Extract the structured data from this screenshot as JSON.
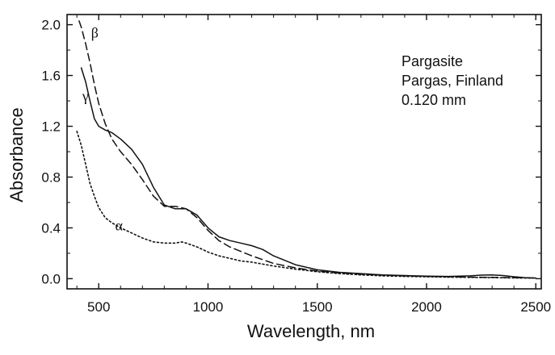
{
  "chart_data": {
    "type": "line",
    "title": "",
    "xlabel": "Wavelength, nm",
    "ylabel": "Absorbance",
    "xlim": [
      355,
      2525
    ],
    "ylim": [
      -0.08,
      2.08
    ],
    "x_ticks": [
      500,
      1000,
      1500,
      2000,
      2500
    ],
    "x_tick_labels": [
      "500",
      "1000",
      "1500",
      "2000",
      "2500"
    ],
    "y_ticks": [
      0.0,
      0.4,
      0.8,
      1.2,
      1.6,
      2.0
    ],
    "y_tick_labels": [
      "0.0",
      "0.4",
      "0.8",
      "1.2",
      "1.6",
      "2.0"
    ],
    "grid": false,
    "annotation": {
      "lines": [
        "Pargasite",
        "Pargas, Finland",
        "0.120 mm"
      ]
    },
    "series": [
      {
        "name": "β",
        "style": "dashed",
        "color": "#111111",
        "label_pos": [
          465,
          1.9
        ],
        "x": [
          410,
          420,
          440,
          460,
          480,
          500,
          530,
          560,
          600,
          650,
          700,
          750,
          800,
          850,
          900,
          950,
          1000,
          1050,
          1100,
          1200,
          1300,
          1400,
          1500,
          1600,
          1700,
          1800,
          1900,
          2000,
          2100,
          2200,
          2300,
          2400,
          2500
        ],
        "values": [
          2.03,
          1.98,
          1.85,
          1.7,
          1.53,
          1.38,
          1.22,
          1.1,
          1.0,
          0.9,
          0.78,
          0.65,
          0.57,
          0.57,
          0.55,
          0.48,
          0.38,
          0.3,
          0.25,
          0.18,
          0.12,
          0.085,
          0.06,
          0.045,
          0.035,
          0.028,
          0.022,
          0.018,
          0.015,
          0.012,
          0.01,
          0.008,
          0.005
        ]
      },
      {
        "name": "γ",
        "style": "solid",
        "color": "#111111",
        "label_pos": [
          425,
          1.4
        ],
        "x": [
          420,
          440,
          460,
          480,
          500,
          530,
          560,
          600,
          650,
          700,
          750,
          800,
          850,
          900,
          950,
          1000,
          1050,
          1100,
          1150,
          1200,
          1250,
          1300,
          1400,
          1500,
          1600,
          1700,
          1800,
          1900,
          2000,
          2100,
          2200,
          2250,
          2300,
          2350,
          2400,
          2450,
          2500
        ],
        "values": [
          1.66,
          1.55,
          1.4,
          1.26,
          1.2,
          1.17,
          1.15,
          1.1,
          1.02,
          0.9,
          0.72,
          0.58,
          0.55,
          0.55,
          0.5,
          0.4,
          0.33,
          0.3,
          0.28,
          0.26,
          0.23,
          0.18,
          0.11,
          0.07,
          0.05,
          0.04,
          0.03,
          0.025,
          0.02,
          0.018,
          0.022,
          0.028,
          0.03,
          0.025,
          0.015,
          0.008,
          0.005
        ]
      },
      {
        "name": "α",
        "style": "dotted",
        "color": "#111111",
        "label_pos": [
          575,
          0.38
        ],
        "x": [
          400,
          420,
          440,
          460,
          480,
          500,
          530,
          560,
          600,
          650,
          700,
          750,
          800,
          850,
          880,
          900,
          950,
          1000,
          1050,
          1100,
          1150,
          1200,
          1300,
          1400,
          1500,
          1600,
          1700,
          1800,
          1900,
          2000,
          2100,
          2200,
          2300,
          2400,
          2500
        ],
        "values": [
          1.16,
          1.05,
          0.9,
          0.75,
          0.65,
          0.56,
          0.48,
          0.44,
          0.4,
          0.36,
          0.32,
          0.29,
          0.28,
          0.28,
          0.29,
          0.28,
          0.25,
          0.21,
          0.18,
          0.16,
          0.14,
          0.13,
          0.1,
          0.075,
          0.055,
          0.04,
          0.03,
          0.022,
          0.018,
          0.015,
          0.012,
          0.01,
          0.008,
          0.006,
          0.005
        ]
      }
    ]
  }
}
